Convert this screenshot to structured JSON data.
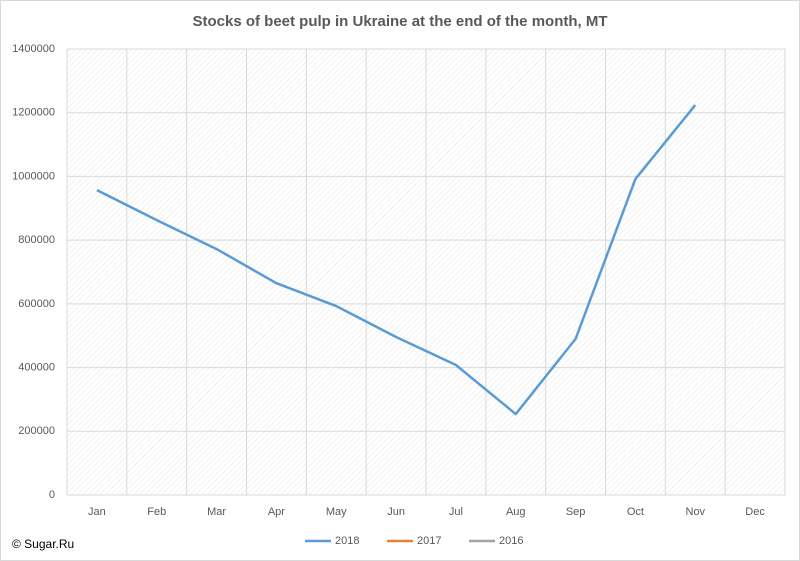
{
  "chart_data": {
    "type": "line",
    "title": "Stocks of beet pulp in Ukraine at the end of the month, MT",
    "source": "© Sugar.Ru",
    "categories": [
      "Jan",
      "Feb",
      "Mar",
      "Apr",
      "May",
      "Jun",
      "Jul",
      "Aug",
      "Sep",
      "Oct",
      "Nov",
      "Dec"
    ],
    "series": [
      {
        "name": "2018",
        "color": "#5b9bd5",
        "values": [
          957000,
          863000,
          772000,
          665000,
          593000,
          496000,
          408000,
          254000,
          490000,
          992000,
          1224000,
          null
        ]
      },
      {
        "name": "2017",
        "color": "#ed7d31",
        "values": [
          null,
          null,
          null,
          null,
          null,
          null,
          null,
          null,
          null,
          null,
          null,
          null
        ]
      },
      {
        "name": "2016",
        "color": "#a5a5a5",
        "values": [
          null,
          null,
          null,
          null,
          null,
          null,
          null,
          null,
          null,
          null,
          null,
          null
        ]
      }
    ],
    "ylim": [
      0,
      1400000
    ],
    "yticks": [
      0,
      200000,
      400000,
      600000,
      800000,
      1000000,
      1200000,
      1400000
    ],
    "grid": true,
    "legend": "bottom"
  }
}
